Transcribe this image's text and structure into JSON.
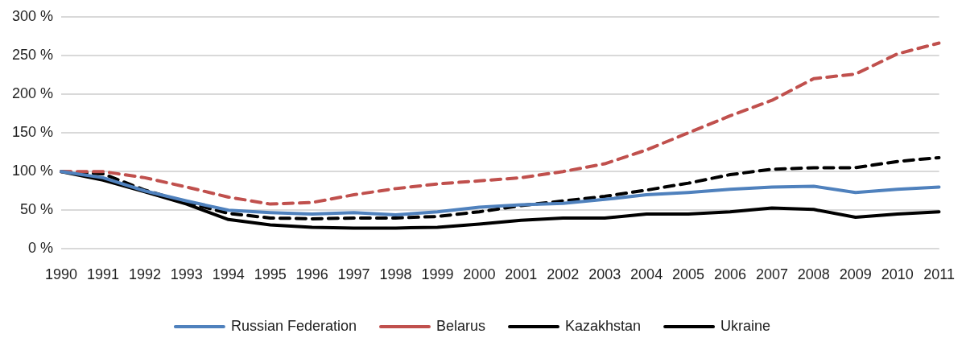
{
  "chart_data": {
    "type": "line",
    "categories": [
      "1990",
      "1991",
      "1992",
      "1993",
      "1994",
      "1995",
      "1996",
      "1997",
      "1998",
      "1999",
      "2000",
      "2001",
      "2002",
      "2003",
      "2004",
      "2005",
      "2006",
      "2007",
      "2008",
      "2009",
      "2010",
      "2011"
    ],
    "series": [
      {
        "name": "Russian Federation",
        "color": "#4f81bd",
        "line_style": "solid",
        "values": [
          100,
          92,
          75,
          62,
          50,
          47,
          45,
          47,
          44,
          48,
          54,
          57,
          59,
          64,
          70,
          73,
          77,
          80,
          81,
          73,
          77,
          80
        ]
      },
      {
        "name": "Belarus",
        "color": "#c0504d",
        "line_style": "dashed",
        "values": [
          100,
          100,
          92,
          80,
          67,
          58,
          60,
          70,
          78,
          84,
          88,
          92,
          100,
          110,
          128,
          150,
          172,
          192,
          220,
          226,
          252,
          266
        ]
      },
      {
        "name": "Kazakhstan",
        "color": "#000000",
        "line_style": "dashed",
        "values": [
          100,
          97,
          76,
          60,
          46,
          40,
          39,
          40,
          40,
          42,
          48,
          56,
          62,
          68,
          76,
          85,
          96,
          103,
          105,
          105,
          113,
          118
        ]
      },
      {
        "name": "Ukraine",
        "color": "#000000",
        "line_style": "solid",
        "values": [
          100,
          89,
          74,
          58,
          38,
          31,
          28,
          27,
          27,
          28,
          32,
          37,
          40,
          40,
          45,
          45,
          48,
          53,
          51,
          41,
          45,
          48
        ]
      }
    ],
    "ylim": [
      0,
      300
    ],
    "yticks": [
      {
        "value": 0,
        "label": "0 %"
      },
      {
        "value": 50,
        "label": "50 %"
      },
      {
        "value": 100,
        "label": "100 %"
      },
      {
        "value": 150,
        "label": "150 %"
      },
      {
        "value": 200,
        "label": "200 %"
      },
      {
        "value": 250,
        "label": "250 %"
      },
      {
        "value": 300,
        "label": "300 %"
      }
    ],
    "grid": "y",
    "legend": "bottom",
    "marker": "none"
  }
}
